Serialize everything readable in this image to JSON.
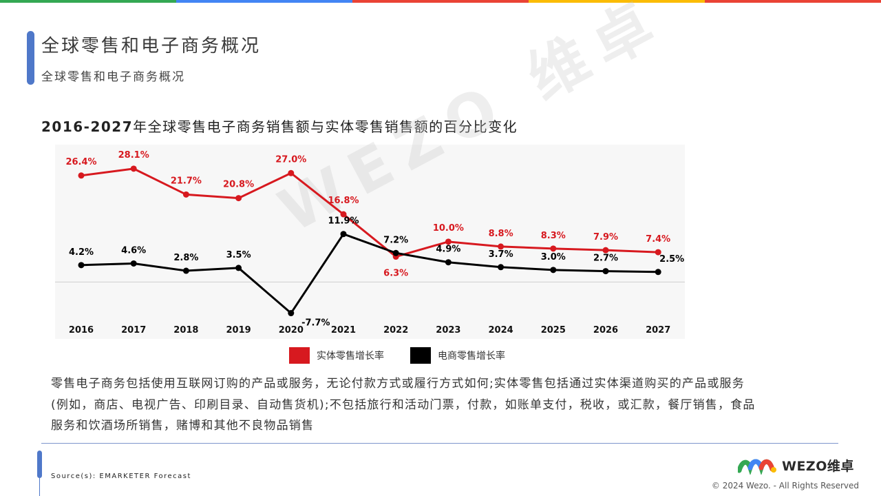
{
  "header": {
    "title": "全球零售和电子商务概况",
    "subtitle": "全球零售和电子商务概况",
    "bar_colors": [
      "#34a853",
      "#4285f4",
      "#ea4335",
      "#fbbc05",
      "#ea4335"
    ]
  },
  "chart_title": {
    "years": "2016-2027",
    "text": "年全球零售电子商务销售额与实体零售销售额的百分比变化"
  },
  "chart_data": {
    "type": "line",
    "x": [
      "2016",
      "2017",
      "2018",
      "2019",
      "2020",
      "2021",
      "2022",
      "2023",
      "2024",
      "2025",
      "2026",
      "2027"
    ],
    "series": [
      {
        "name": "实体零售增长率",
        "color": "#d7191f",
        "values": [
          26.4,
          28.1,
          21.7,
          20.8,
          27.0,
          16.8,
          6.3,
          10.0,
          8.8,
          8.3,
          7.9,
          7.4
        ],
        "labels": [
          "26.4%",
          "28.1%",
          "21.7%",
          "20.8%",
          "27.0%",
          "16.8%",
          "6.3%",
          "10.0%",
          "8.8%",
          "8.3%",
          "7.9%",
          "7.4%"
        ]
      },
      {
        "name": "电商零售增长率",
        "color": "#000000",
        "values": [
          4.2,
          4.6,
          2.8,
          3.5,
          -7.7,
          11.9,
          7.2,
          4.9,
          3.7,
          3.0,
          2.7,
          2.5
        ],
        "labels": [
          "4.2%",
          "4.6%",
          "2.8%",
          "3.5%",
          "-7.7%",
          "11.9%",
          "7.2%",
          "4.9%",
          "3.7%",
          "3.0%",
          "2.7%",
          "2.5%"
        ]
      }
    ],
    "ylim": [
      -10,
      32
    ],
    "grid": false,
    "legend": "bottom-center"
  },
  "watermark": "WEZO 维卓",
  "note": "零售电子商务包括使用互联网订购的产品或服务，无论付款方式或履行方式如何;实体零售包括通过实体渠道购买的产品或服务(例如，商店、电视广告、印刷目录、自动售货机);不包括旅行和活动门票，付款，如账单支付，税收，或汇款，餐厅销售，食品服务和饮酒场所销售，赌博和其他不良物品销售",
  "source": "Source(s): EMARKETER Forecast",
  "logo_text": "WEZO维卓",
  "copyright": "© 2024 Wezo. - All Rights Reserved"
}
